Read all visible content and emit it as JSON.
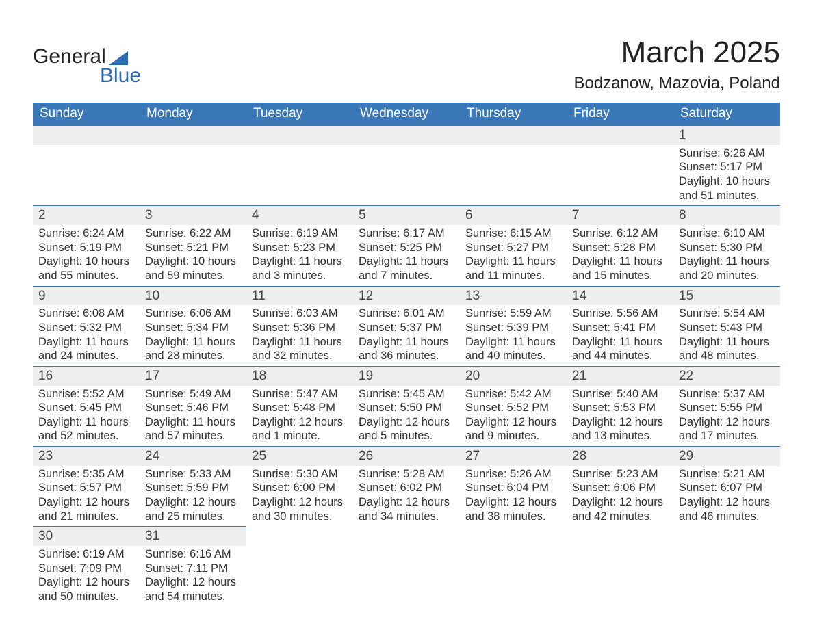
{
  "logo": {
    "word1": "General",
    "word2": "Blue",
    "triangle_color": "#2b6bb0"
  },
  "title": "March 2025",
  "location": "Bodzanow, Mazovia, Poland",
  "colors": {
    "header_bg": "#3b78b7",
    "header_text": "#ffffff",
    "daynum_bg": "#eeeeee",
    "row_border": "#3b78b7",
    "body_text": "#333333",
    "title_text": "#222222"
  },
  "day_headers": [
    "Sunday",
    "Monday",
    "Tuesday",
    "Wednesday",
    "Thursday",
    "Friday",
    "Saturday"
  ],
  "weeks": [
    {
      "days": [
        null,
        null,
        null,
        null,
        null,
        null,
        {
          "num": "1",
          "sunrise": "Sunrise: 6:26 AM",
          "sunset": "Sunset: 5:17 PM",
          "day1": "Daylight: 10 hours",
          "day2": "and 51 minutes."
        }
      ]
    },
    {
      "days": [
        {
          "num": "2",
          "sunrise": "Sunrise: 6:24 AM",
          "sunset": "Sunset: 5:19 PM",
          "day1": "Daylight: 10 hours",
          "day2": "and 55 minutes."
        },
        {
          "num": "3",
          "sunrise": "Sunrise: 6:22 AM",
          "sunset": "Sunset: 5:21 PM",
          "day1": "Daylight: 10 hours",
          "day2": "and 59 minutes."
        },
        {
          "num": "4",
          "sunrise": "Sunrise: 6:19 AM",
          "sunset": "Sunset: 5:23 PM",
          "day1": "Daylight: 11 hours",
          "day2": "and 3 minutes."
        },
        {
          "num": "5",
          "sunrise": "Sunrise: 6:17 AM",
          "sunset": "Sunset: 5:25 PM",
          "day1": "Daylight: 11 hours",
          "day2": "and 7 minutes."
        },
        {
          "num": "6",
          "sunrise": "Sunrise: 6:15 AM",
          "sunset": "Sunset: 5:27 PM",
          "day1": "Daylight: 11 hours",
          "day2": "and 11 minutes."
        },
        {
          "num": "7",
          "sunrise": "Sunrise: 6:12 AM",
          "sunset": "Sunset: 5:28 PM",
          "day1": "Daylight: 11 hours",
          "day2": "and 15 minutes."
        },
        {
          "num": "8",
          "sunrise": "Sunrise: 6:10 AM",
          "sunset": "Sunset: 5:30 PM",
          "day1": "Daylight: 11 hours",
          "day2": "and 20 minutes."
        }
      ]
    },
    {
      "days": [
        {
          "num": "9",
          "sunrise": "Sunrise: 6:08 AM",
          "sunset": "Sunset: 5:32 PM",
          "day1": "Daylight: 11 hours",
          "day2": "and 24 minutes."
        },
        {
          "num": "10",
          "sunrise": "Sunrise: 6:06 AM",
          "sunset": "Sunset: 5:34 PM",
          "day1": "Daylight: 11 hours",
          "day2": "and 28 minutes."
        },
        {
          "num": "11",
          "sunrise": "Sunrise: 6:03 AM",
          "sunset": "Sunset: 5:36 PM",
          "day1": "Daylight: 11 hours",
          "day2": "and 32 minutes."
        },
        {
          "num": "12",
          "sunrise": "Sunrise: 6:01 AM",
          "sunset": "Sunset: 5:37 PM",
          "day1": "Daylight: 11 hours",
          "day2": "and 36 minutes."
        },
        {
          "num": "13",
          "sunrise": "Sunrise: 5:59 AM",
          "sunset": "Sunset: 5:39 PM",
          "day1": "Daylight: 11 hours",
          "day2": "and 40 minutes."
        },
        {
          "num": "14",
          "sunrise": "Sunrise: 5:56 AM",
          "sunset": "Sunset: 5:41 PM",
          "day1": "Daylight: 11 hours",
          "day2": "and 44 minutes."
        },
        {
          "num": "15",
          "sunrise": "Sunrise: 5:54 AM",
          "sunset": "Sunset: 5:43 PM",
          "day1": "Daylight: 11 hours",
          "day2": "and 48 minutes."
        }
      ]
    },
    {
      "days": [
        {
          "num": "16",
          "sunrise": "Sunrise: 5:52 AM",
          "sunset": "Sunset: 5:45 PM",
          "day1": "Daylight: 11 hours",
          "day2": "and 52 minutes."
        },
        {
          "num": "17",
          "sunrise": "Sunrise: 5:49 AM",
          "sunset": "Sunset: 5:46 PM",
          "day1": "Daylight: 11 hours",
          "day2": "and 57 minutes."
        },
        {
          "num": "18",
          "sunrise": "Sunrise: 5:47 AM",
          "sunset": "Sunset: 5:48 PM",
          "day1": "Daylight: 12 hours",
          "day2": "and 1 minute."
        },
        {
          "num": "19",
          "sunrise": "Sunrise: 5:45 AM",
          "sunset": "Sunset: 5:50 PM",
          "day1": "Daylight: 12 hours",
          "day2": "and 5 minutes."
        },
        {
          "num": "20",
          "sunrise": "Sunrise: 5:42 AM",
          "sunset": "Sunset: 5:52 PM",
          "day1": "Daylight: 12 hours",
          "day2": "and 9 minutes."
        },
        {
          "num": "21",
          "sunrise": "Sunrise: 5:40 AM",
          "sunset": "Sunset: 5:53 PM",
          "day1": "Daylight: 12 hours",
          "day2": "and 13 minutes."
        },
        {
          "num": "22",
          "sunrise": "Sunrise: 5:37 AM",
          "sunset": "Sunset: 5:55 PM",
          "day1": "Daylight: 12 hours",
          "day2": "and 17 minutes."
        }
      ]
    },
    {
      "days": [
        {
          "num": "23",
          "sunrise": "Sunrise: 5:35 AM",
          "sunset": "Sunset: 5:57 PM",
          "day1": "Daylight: 12 hours",
          "day2": "and 21 minutes."
        },
        {
          "num": "24",
          "sunrise": "Sunrise: 5:33 AM",
          "sunset": "Sunset: 5:59 PM",
          "day1": "Daylight: 12 hours",
          "day2": "and 25 minutes."
        },
        {
          "num": "25",
          "sunrise": "Sunrise: 5:30 AM",
          "sunset": "Sunset: 6:00 PM",
          "day1": "Daylight: 12 hours",
          "day2": "and 30 minutes."
        },
        {
          "num": "26",
          "sunrise": "Sunrise: 5:28 AM",
          "sunset": "Sunset: 6:02 PM",
          "day1": "Daylight: 12 hours",
          "day2": "and 34 minutes."
        },
        {
          "num": "27",
          "sunrise": "Sunrise: 5:26 AM",
          "sunset": "Sunset: 6:04 PM",
          "day1": "Daylight: 12 hours",
          "day2": "and 38 minutes."
        },
        {
          "num": "28",
          "sunrise": "Sunrise: 5:23 AM",
          "sunset": "Sunset: 6:06 PM",
          "day1": "Daylight: 12 hours",
          "day2": "and 42 minutes."
        },
        {
          "num": "29",
          "sunrise": "Sunrise: 5:21 AM",
          "sunset": "Sunset: 6:07 PM",
          "day1": "Daylight: 12 hours",
          "day2": "and 46 minutes."
        }
      ]
    },
    {
      "days": [
        {
          "num": "30",
          "sunrise": "Sunrise: 6:19 AM",
          "sunset": "Sunset: 7:09 PM",
          "day1": "Daylight: 12 hours",
          "day2": "and 50 minutes."
        },
        {
          "num": "31",
          "sunrise": "Sunrise: 6:16 AM",
          "sunset": "Sunset: 7:11 PM",
          "day1": "Daylight: 12 hours",
          "day2": "and 54 minutes."
        },
        null,
        null,
        null,
        null,
        null
      ]
    }
  ]
}
